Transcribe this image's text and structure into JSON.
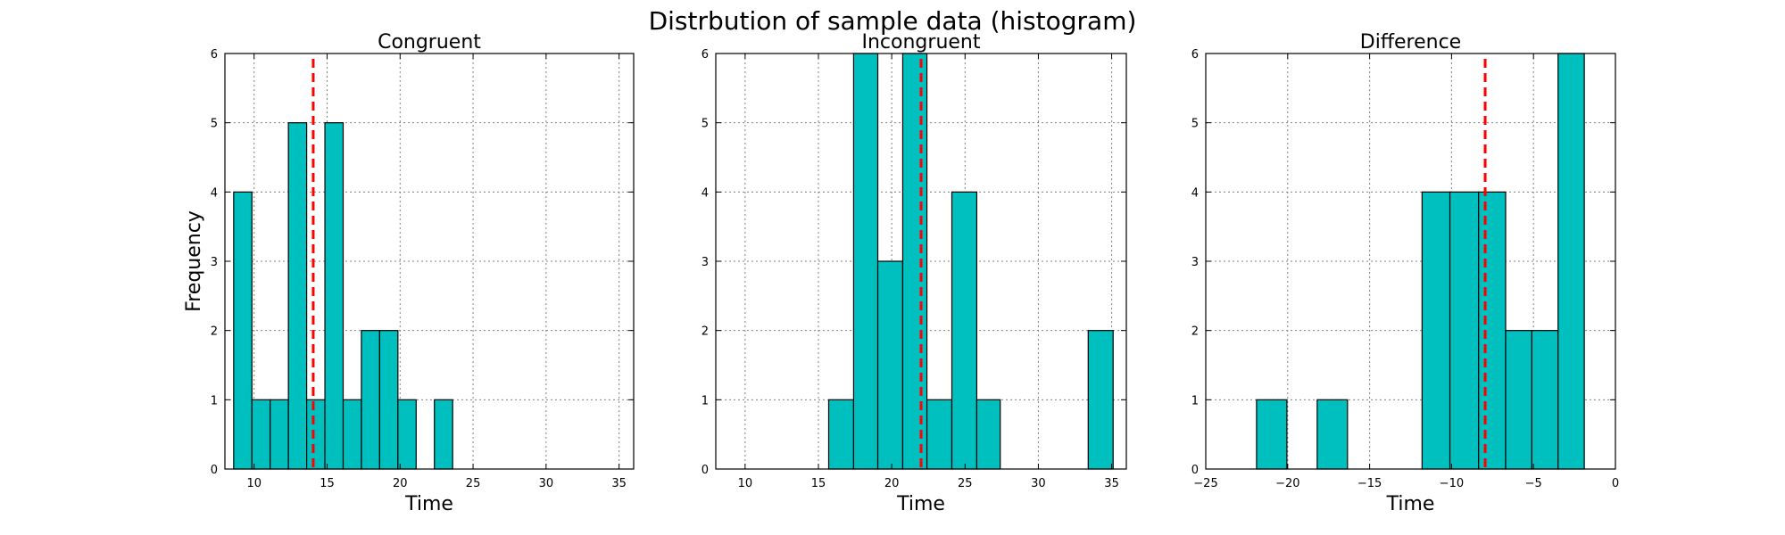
{
  "figure_title": "Distrbution of sample data (histogram)",
  "colors": {
    "bar": "#00bfbf",
    "mean": "#ff0000"
  },
  "chart_data": [
    {
      "type": "bar",
      "title": "Congruent",
      "xlabel": "Time",
      "ylabel": "Frequency",
      "xlim": [
        8,
        36
      ],
      "ylim": [
        0,
        6
      ],
      "xticks": [
        10,
        15,
        20,
        25,
        30,
        35
      ],
      "yticks": [
        0,
        1,
        2,
        3,
        4,
        5,
        6
      ],
      "grid": true,
      "bins": [
        {
          "start": 8.6,
          "end": 9.85,
          "count": 4
        },
        {
          "start": 9.85,
          "end": 11.1,
          "count": 1
        },
        {
          "start": 11.1,
          "end": 12.35,
          "count": 1
        },
        {
          "start": 12.35,
          "end": 13.6,
          "count": 5
        },
        {
          "start": 13.6,
          "end": 14.85,
          "count": 1
        },
        {
          "start": 14.85,
          "end": 16.1,
          "count": 5
        },
        {
          "start": 16.1,
          "end": 17.35,
          "count": 1
        },
        {
          "start": 17.35,
          "end": 18.6,
          "count": 2
        },
        {
          "start": 18.6,
          "end": 19.85,
          "count": 2
        },
        {
          "start": 19.85,
          "end": 21.1,
          "count": 1
        },
        {
          "start": 21.1,
          "end": 22.35,
          "count": 0
        },
        {
          "start": 22.35,
          "end": 23.6,
          "count": 1
        }
      ],
      "mean": 14.05
    },
    {
      "type": "bar",
      "title": "Incongruent",
      "xlabel": "Time",
      "ylabel": "",
      "xlim": [
        8,
        36
      ],
      "ylim": [
        0,
        6
      ],
      "xticks": [
        10,
        15,
        20,
        25,
        30,
        35
      ],
      "yticks": [
        0,
        1,
        2,
        3,
        4,
        5,
        6
      ],
      "grid": true,
      "bins": [
        {
          "start": 15.7,
          "end": 17.4,
          "count": 1
        },
        {
          "start": 17.4,
          "end": 19.05,
          "count": 6
        },
        {
          "start": 19.05,
          "end": 20.75,
          "count": 3
        },
        {
          "start": 20.75,
          "end": 22.4,
          "count": 6
        },
        {
          "start": 22.4,
          "end": 24.1,
          "count": 1
        },
        {
          "start": 24.1,
          "end": 25.8,
          "count": 4
        },
        {
          "start": 25.8,
          "end": 27.4,
          "count": 1
        },
        {
          "start": 33.4,
          "end": 35.1,
          "count": 2
        }
      ],
      "mean": 22.0
    },
    {
      "type": "bar",
      "title": "Difference",
      "xlabel": "Time",
      "ylabel": "",
      "xlim": [
        -25,
        0
      ],
      "ylim": [
        0,
        6
      ],
      "xticks": [
        -25,
        -20,
        -15,
        -10,
        -5,
        0
      ],
      "xtick_labels": [
        "−25",
        "−20",
        "−15",
        "−10",
        "−5",
        "0"
      ],
      "yticks": [
        0,
        1,
        2,
        3,
        4,
        5,
        6
      ],
      "grid": true,
      "bins": [
        {
          "start": -21.9,
          "end": -20.05,
          "count": 1
        },
        {
          "start": -18.2,
          "end": -16.35,
          "count": 1
        },
        {
          "start": -11.8,
          "end": -10.1,
          "count": 4
        },
        {
          "start": -10.1,
          "end": -8.35,
          "count": 4
        },
        {
          "start": -8.35,
          "end": -6.7,
          "count": 4
        },
        {
          "start": -6.7,
          "end": -5.1,
          "count": 2
        },
        {
          "start": -5.1,
          "end": -3.5,
          "count": 2
        },
        {
          "start": -3.5,
          "end": -1.9,
          "count": 6
        }
      ],
      "mean": -7.95
    }
  ]
}
